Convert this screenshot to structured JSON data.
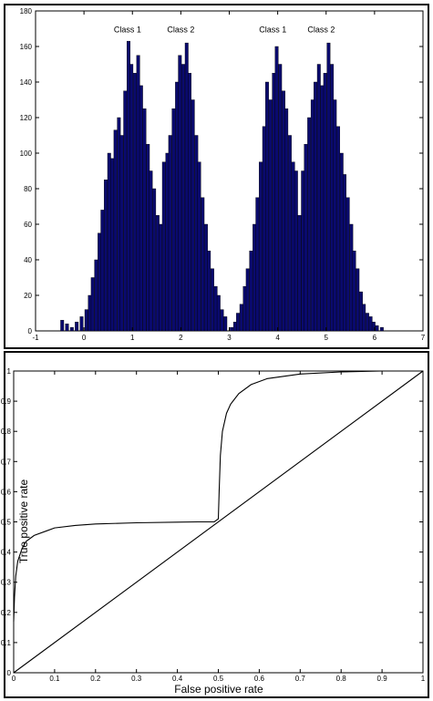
{
  "chart_data": [
    {
      "type": "bar",
      "xlim": [
        -1,
        7
      ],
      "ylim": [
        0,
        180
      ],
      "xticks": [
        -1,
        0,
        1,
        2,
        3,
        4,
        5,
        6,
        7
      ],
      "yticks": [
        0,
        20,
        40,
        60,
        80,
        100,
        120,
        140,
        160,
        180
      ],
      "grid": false,
      "bar_color": "#0a0a6e",
      "annotations": [
        {
          "text": "Class 1",
          "x": 0.9,
          "y": 168
        },
        {
          "text": "Class 2",
          "x": 2.0,
          "y": 168
        },
        {
          "text": "Class 1",
          "x": 3.9,
          "y": 168
        },
        {
          "text": "Class 2",
          "x": 4.9,
          "y": 168
        }
      ],
      "bins": [
        {
          "x": -0.45,
          "y": 6
        },
        {
          "x": -0.35,
          "y": 4
        },
        {
          "x": -0.25,
          "y": 2
        },
        {
          "x": -0.15,
          "y": 5
        },
        {
          "x": -0.05,
          "y": 8
        },
        {
          "x": 0.05,
          "y": 12
        },
        {
          "x": 0.12,
          "y": 20
        },
        {
          "x": 0.18,
          "y": 30
        },
        {
          "x": 0.25,
          "y": 40
        },
        {
          "x": 0.32,
          "y": 55
        },
        {
          "x": 0.38,
          "y": 68
        },
        {
          "x": 0.45,
          "y": 85
        },
        {
          "x": 0.52,
          "y": 100
        },
        {
          "x": 0.58,
          "y": 97
        },
        {
          "x": 0.65,
          "y": 113
        },
        {
          "x": 0.72,
          "y": 120
        },
        {
          "x": 0.78,
          "y": 110
        },
        {
          "x": 0.85,
          "y": 135
        },
        {
          "x": 0.92,
          "y": 163
        },
        {
          "x": 0.98,
          "y": 150
        },
        {
          "x": 1.05,
          "y": 145
        },
        {
          "x": 1.12,
          "y": 155
        },
        {
          "x": 1.18,
          "y": 138
        },
        {
          "x": 1.25,
          "y": 125
        },
        {
          "x": 1.32,
          "y": 105
        },
        {
          "x": 1.38,
          "y": 90
        },
        {
          "x": 1.45,
          "y": 80
        },
        {
          "x": 1.52,
          "y": 65
        },
        {
          "x": 1.58,
          "y": 60
        },
        {
          "x": 1.65,
          "y": 95
        },
        {
          "x": 1.72,
          "y": 100
        },
        {
          "x": 1.78,
          "y": 110
        },
        {
          "x": 1.85,
          "y": 125
        },
        {
          "x": 1.92,
          "y": 140
        },
        {
          "x": 1.98,
          "y": 155
        },
        {
          "x": 2.05,
          "y": 150
        },
        {
          "x": 2.12,
          "y": 162
        },
        {
          "x": 2.18,
          "y": 145
        },
        {
          "x": 2.25,
          "y": 130
        },
        {
          "x": 2.32,
          "y": 110
        },
        {
          "x": 2.38,
          "y": 95
        },
        {
          "x": 2.45,
          "y": 75
        },
        {
          "x": 2.52,
          "y": 60
        },
        {
          "x": 2.58,
          "y": 45
        },
        {
          "x": 2.65,
          "y": 35
        },
        {
          "x": 2.72,
          "y": 25
        },
        {
          "x": 2.78,
          "y": 20
        },
        {
          "x": 2.85,
          "y": 12
        },
        {
          "x": 2.92,
          "y": 8
        },
        {
          "x": 3.05,
          "y": 2
        },
        {
          "x": 3.12,
          "y": 5
        },
        {
          "x": 3.18,
          "y": 10
        },
        {
          "x": 3.25,
          "y": 15
        },
        {
          "x": 3.32,
          "y": 25
        },
        {
          "x": 3.38,
          "y": 35
        },
        {
          "x": 3.45,
          "y": 45
        },
        {
          "x": 3.52,
          "y": 60
        },
        {
          "x": 3.58,
          "y": 75
        },
        {
          "x": 3.65,
          "y": 95
        },
        {
          "x": 3.72,
          "y": 115
        },
        {
          "x": 3.78,
          "y": 140
        },
        {
          "x": 3.85,
          "y": 130
        },
        {
          "x": 3.92,
          "y": 145
        },
        {
          "x": 3.98,
          "y": 160
        },
        {
          "x": 4.05,
          "y": 150
        },
        {
          "x": 4.12,
          "y": 135
        },
        {
          "x": 4.18,
          "y": 125
        },
        {
          "x": 4.25,
          "y": 110
        },
        {
          "x": 4.32,
          "y": 95
        },
        {
          "x": 4.38,
          "y": 90
        },
        {
          "x": 4.45,
          "y": 65
        },
        {
          "x": 4.52,
          "y": 90
        },
        {
          "x": 4.58,
          "y": 105
        },
        {
          "x": 4.65,
          "y": 120
        },
        {
          "x": 4.72,
          "y": 130
        },
        {
          "x": 4.78,
          "y": 140
        },
        {
          "x": 4.85,
          "y": 150
        },
        {
          "x": 4.92,
          "y": 138
        },
        {
          "x": 4.98,
          "y": 145
        },
        {
          "x": 5.05,
          "y": 162
        },
        {
          "x": 5.12,
          "y": 150
        },
        {
          "x": 5.18,
          "y": 130
        },
        {
          "x": 5.25,
          "y": 115
        },
        {
          "x": 5.32,
          "y": 100
        },
        {
          "x": 5.38,
          "y": 88
        },
        {
          "x": 5.45,
          "y": 75
        },
        {
          "x": 5.52,
          "y": 60
        },
        {
          "x": 5.58,
          "y": 45
        },
        {
          "x": 5.65,
          "y": 35
        },
        {
          "x": 5.72,
          "y": 22
        },
        {
          "x": 5.78,
          "y": 15
        },
        {
          "x": 5.85,
          "y": 10
        },
        {
          "x": 5.92,
          "y": 8
        },
        {
          "x": 5.98,
          "y": 5
        },
        {
          "x": 6.05,
          "y": 3
        },
        {
          "x": 6.15,
          "y": 2
        }
      ]
    },
    {
      "type": "line",
      "xlabel": "False positive rate",
      "ylabel": "True positive rate",
      "xlim": [
        0,
        1
      ],
      "ylim": [
        0,
        1
      ],
      "xticks": [
        0,
        0.1,
        0.2,
        0.3,
        0.4,
        0.5,
        0.6,
        0.7,
        0.8,
        0.9,
        1
      ],
      "yticks": [
        0,
        0.1,
        0.2,
        0.3,
        0.4,
        0.5,
        0.6,
        0.7,
        0.8,
        0.9,
        1
      ],
      "grid": false,
      "series": [
        {
          "points": [
            [
              0,
              0.17
            ],
            [
              0.002,
              0.25
            ],
            [
              0.005,
              0.32
            ],
            [
              0.01,
              0.37
            ],
            [
              0.02,
              0.41
            ],
            [
              0.03,
              0.435
            ],
            [
              0.05,
              0.455
            ],
            [
              0.08,
              0.47
            ],
            [
              0.1,
              0.48
            ],
            [
              0.15,
              0.488
            ],
            [
              0.2,
              0.493
            ],
            [
              0.3,
              0.497
            ],
            [
              0.4,
              0.499
            ],
            [
              0.45,
              0.5
            ],
            [
              0.49,
              0.5
            ],
            [
              0.5,
              0.51
            ],
            [
              0.502,
              0.6
            ],
            [
              0.505,
              0.72
            ],
            [
              0.51,
              0.8
            ],
            [
              0.52,
              0.86
            ],
            [
              0.53,
              0.89
            ],
            [
              0.55,
              0.925
            ],
            [
              0.58,
              0.955
            ],
            [
              0.62,
              0.975
            ],
            [
              0.7,
              0.99
            ],
            [
              0.8,
              0.997
            ],
            [
              0.9,
              1.0
            ],
            [
              1.0,
              1.0
            ]
          ]
        },
        {
          "points": [
            [
              0,
              0
            ],
            [
              1,
              1
            ]
          ]
        }
      ]
    }
  ]
}
